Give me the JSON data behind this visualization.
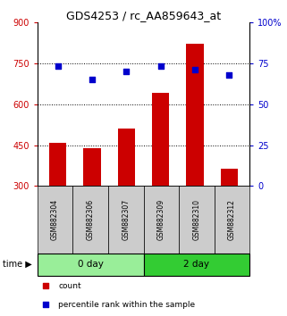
{
  "title": "GDS4253 / rc_AA859643_at",
  "categories": [
    "GSM882304",
    "GSM882306",
    "GSM882307",
    "GSM882309",
    "GSM882310",
    "GSM882312"
  ],
  "count_values": [
    460,
    440,
    510,
    640,
    820,
    365
  ],
  "percentile_values": [
    73,
    65,
    70,
    73,
    71,
    68
  ],
  "bar_color": "#cc0000",
  "dot_color": "#0000cc",
  "left_ylim": [
    300,
    900
  ],
  "right_ylim": [
    0,
    100
  ],
  "left_yticks": [
    300,
    450,
    600,
    750,
    900
  ],
  "right_yticks": [
    0,
    25,
    50,
    75,
    100
  ],
  "right_yticklabels": [
    "0",
    "25",
    "50",
    "75",
    "100%"
  ],
  "hline_values": [
    450,
    600,
    750
  ],
  "groups": [
    {
      "label": "0 day",
      "indices": [
        0,
        1,
        2
      ],
      "color": "#99ee99"
    },
    {
      "label": "2 day",
      "indices": [
        3,
        4,
        5
      ],
      "color": "#33cc33"
    }
  ],
  "legend_items": [
    {
      "label": "count",
      "color": "#cc0000"
    },
    {
      "label": "percentile rank within the sample",
      "color": "#0000cc"
    }
  ],
  "bar_bottom": 300,
  "bar_width": 0.5,
  "dot_size": 25,
  "xlabel_area_color": "#cccccc",
  "title_fontsize": 9
}
